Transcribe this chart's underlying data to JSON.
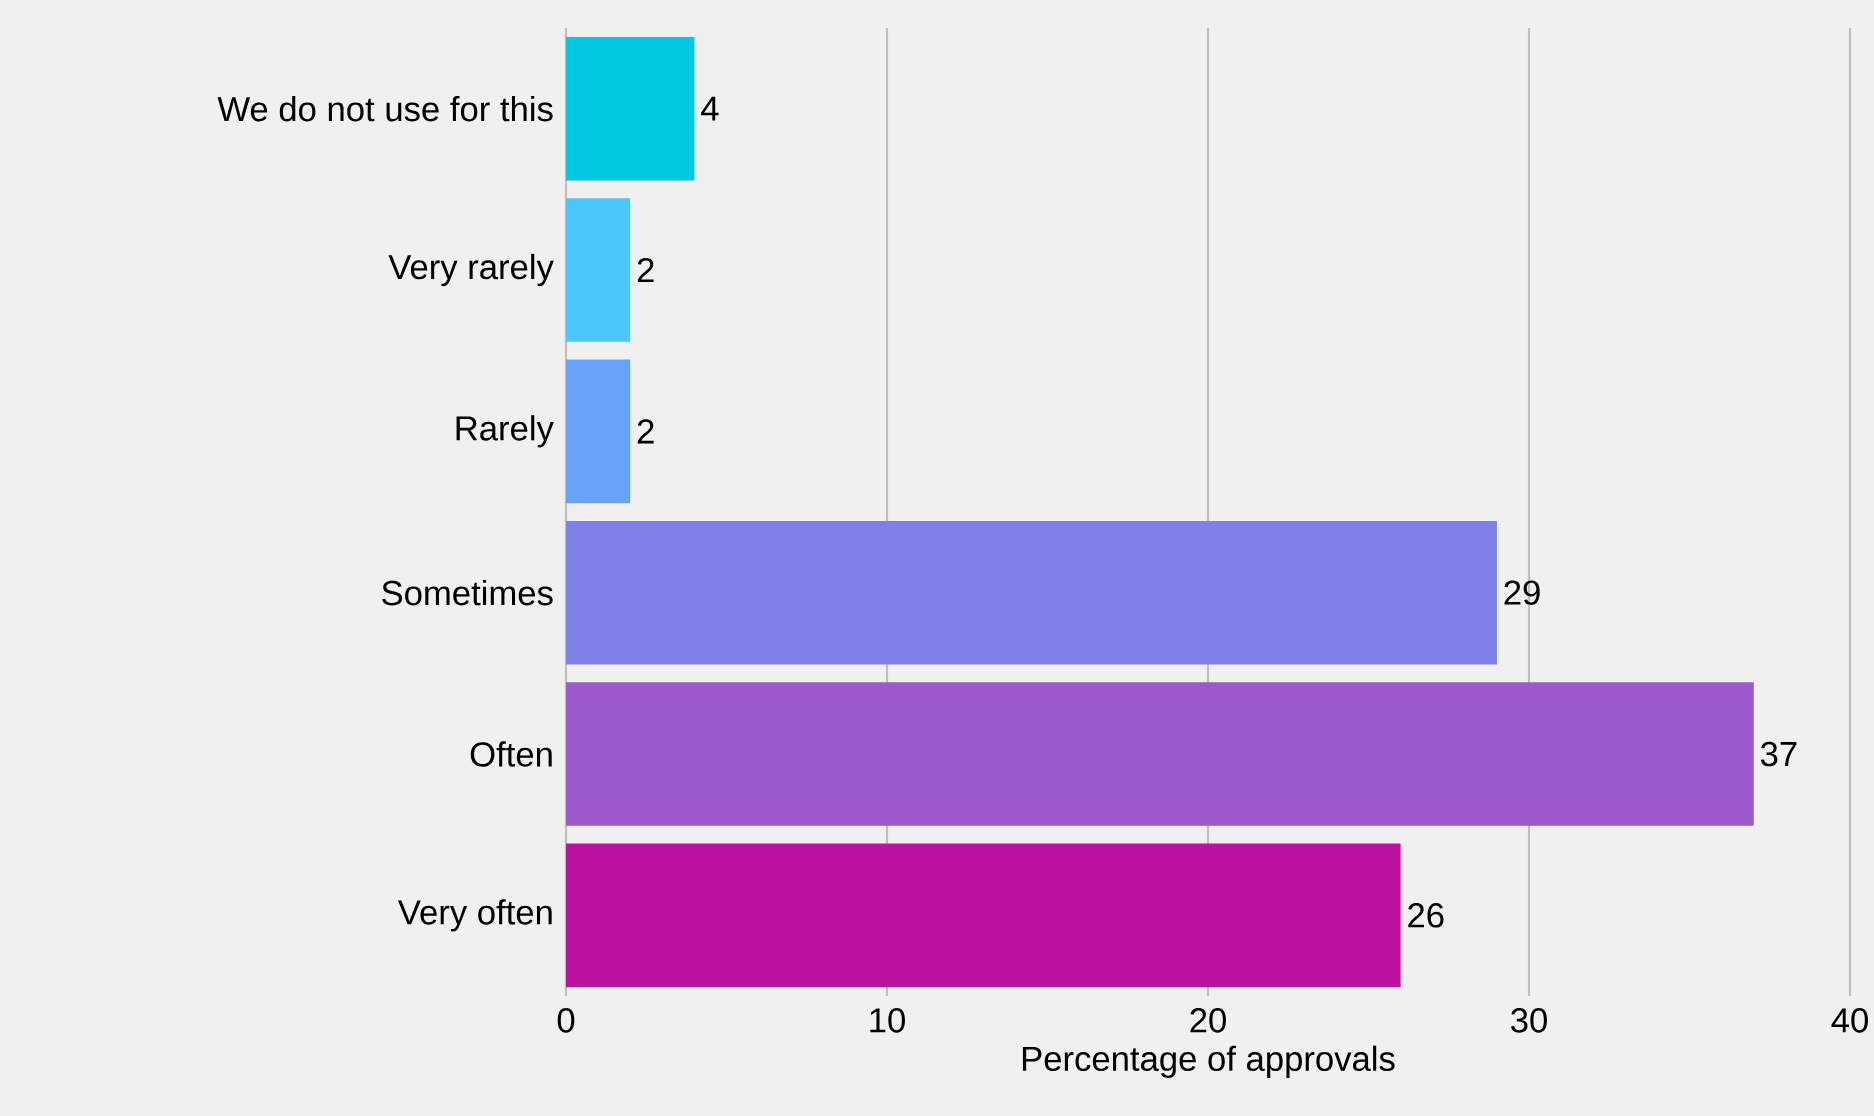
{
  "chart_data": {
    "type": "bar",
    "orientation": "horizontal",
    "xlabel": "Percentage of approvals",
    "categories": [
      "We do not use for this",
      "Very rarely",
      "Rarely",
      "Sometimes",
      "Often",
      "Very often"
    ],
    "values": [
      4,
      2,
      2,
      29,
      37,
      26
    ],
    "colors": [
      "#00c8de",
      "#4cc7fc",
      "#68a3fb",
      "#7f80e7",
      "#9b59cc",
      "#bb12a0"
    ],
    "xlim": [
      0,
      40
    ],
    "xticks": [
      0,
      10,
      20,
      30,
      40
    ],
    "grid": "x",
    "data_labels": true
  }
}
